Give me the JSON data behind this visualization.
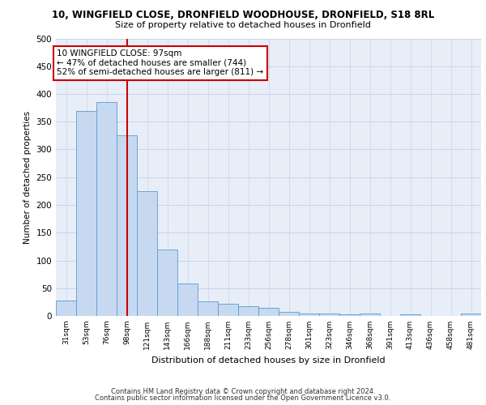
{
  "title_line1": "10, WINGFIELD CLOSE, DRONFIELD WOODHOUSE, DRONFIELD, S18 8RL",
  "title_line2": "Size of property relative to detached houses in Dronfield",
  "xlabel": "Distribution of detached houses by size in Dronfield",
  "ylabel": "Number of detached properties",
  "categories": [
    "31sqm",
    "53sqm",
    "76sqm",
    "98sqm",
    "121sqm",
    "143sqm",
    "166sqm",
    "188sqm",
    "211sqm",
    "233sqm",
    "256sqm",
    "278sqm",
    "301sqm",
    "323sqm",
    "346sqm",
    "368sqm",
    "391sqm",
    "413sqm",
    "436sqm",
    "458sqm",
    "481sqm"
  ],
  "values": [
    28,
    370,
    385,
    325,
    225,
    120,
    58,
    27,
    22,
    18,
    15,
    7,
    5,
    4,
    3,
    4,
    0,
    3,
    0,
    0,
    5
  ],
  "bar_color": "#c6d9f0",
  "bar_edge_color": "#5b9bd5",
  "property_index": 3,
  "property_line_color": "#cc0000",
  "annotation_text": "10 WINGFIELD CLOSE: 97sqm\n← 47% of detached houses are smaller (744)\n52% of semi-detached houses are larger (811) →",
  "annotation_box_color": "#cc0000",
  "ylim": [
    0,
    500
  ],
  "yticks": [
    0,
    50,
    100,
    150,
    200,
    250,
    300,
    350,
    400,
    450,
    500
  ],
  "footer_line1": "Contains HM Land Registry data © Crown copyright and database right 2024.",
  "footer_line2": "Contains public sector information licensed under the Open Government Licence v3.0.",
  "background_color": "#ffffff",
  "grid_color": "#c8d4e8",
  "ax_facecolor": "#e8eef8"
}
